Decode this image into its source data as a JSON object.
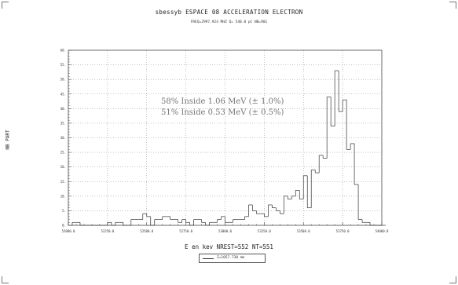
{
  "chart_data": {
    "type": "bar",
    "title": "sbessyb   ESPACE 08 ACCELERATION ELECTRON",
    "subtitle": "FREQ=2997.924 MHZ  Q=  540.0 pC  NB=901",
    "xlabel": "E en kev  NREST=552  NT=551",
    "ylabel": "NB PART",
    "legend": {
      "position": "bottom-center",
      "label": "Z=1057.730 mm"
    },
    "xlim": [
      52000,
      54000
    ],
    "ylim": [
      0,
      60
    ],
    "x_ticks": [
      52000,
      52250,
      52500,
      52750,
      53000,
      53250,
      53500,
      53750,
      54000
    ],
    "x_tick_labels": [
      "52000.0",
      "52250.0",
      "52500.0",
      "52750.0",
      "53000.0",
      "53250.0",
      "53500.0",
      "53750.0",
      "54000.0"
    ],
    "y_ticks": [
      0,
      5,
      10,
      15,
      20,
      25,
      30,
      35,
      40,
      45,
      50,
      55,
      60
    ],
    "y_tick_labels": [
      "0.",
      "5.",
      "10.",
      "15.",
      "20.",
      "25.",
      "30.",
      "35.",
      "40.",
      "45.",
      "50.",
      "55.",
      "60."
    ],
    "grid": true,
    "bin_width": 25,
    "bin_start": 52025,
    "values": [
      1,
      1,
      0,
      0,
      0,
      0,
      0,
      0,
      0,
      1,
      0,
      1,
      1,
      0,
      0,
      2,
      2,
      2,
      4,
      3,
      0,
      2,
      2,
      3,
      3,
      2,
      2,
      1,
      2,
      1,
      0,
      2,
      2,
      1,
      0,
      1,
      1,
      2,
      3,
      1,
      1,
      2,
      2,
      2,
      3,
      7,
      5,
      4,
      4,
      3,
      7,
      6,
      5,
      4,
      10,
      9,
      10,
      12,
      9,
      17,
      6,
      19,
      18,
      24,
      23,
      44,
      34,
      53,
      39,
      43,
      26,
      28,
      14,
      2,
      1,
      1,
      0,
      0,
      0,
      0
    ],
    "annotations": [
      "58% Inside 1.06 MeV (± 1.0%)",
      "51% Inside 0.53 MeV (± 0.5%)"
    ]
  },
  "colors": {
    "line": "#333333",
    "grid": "#888888",
    "annotation": "#777777",
    "frame": "#444444"
  }
}
